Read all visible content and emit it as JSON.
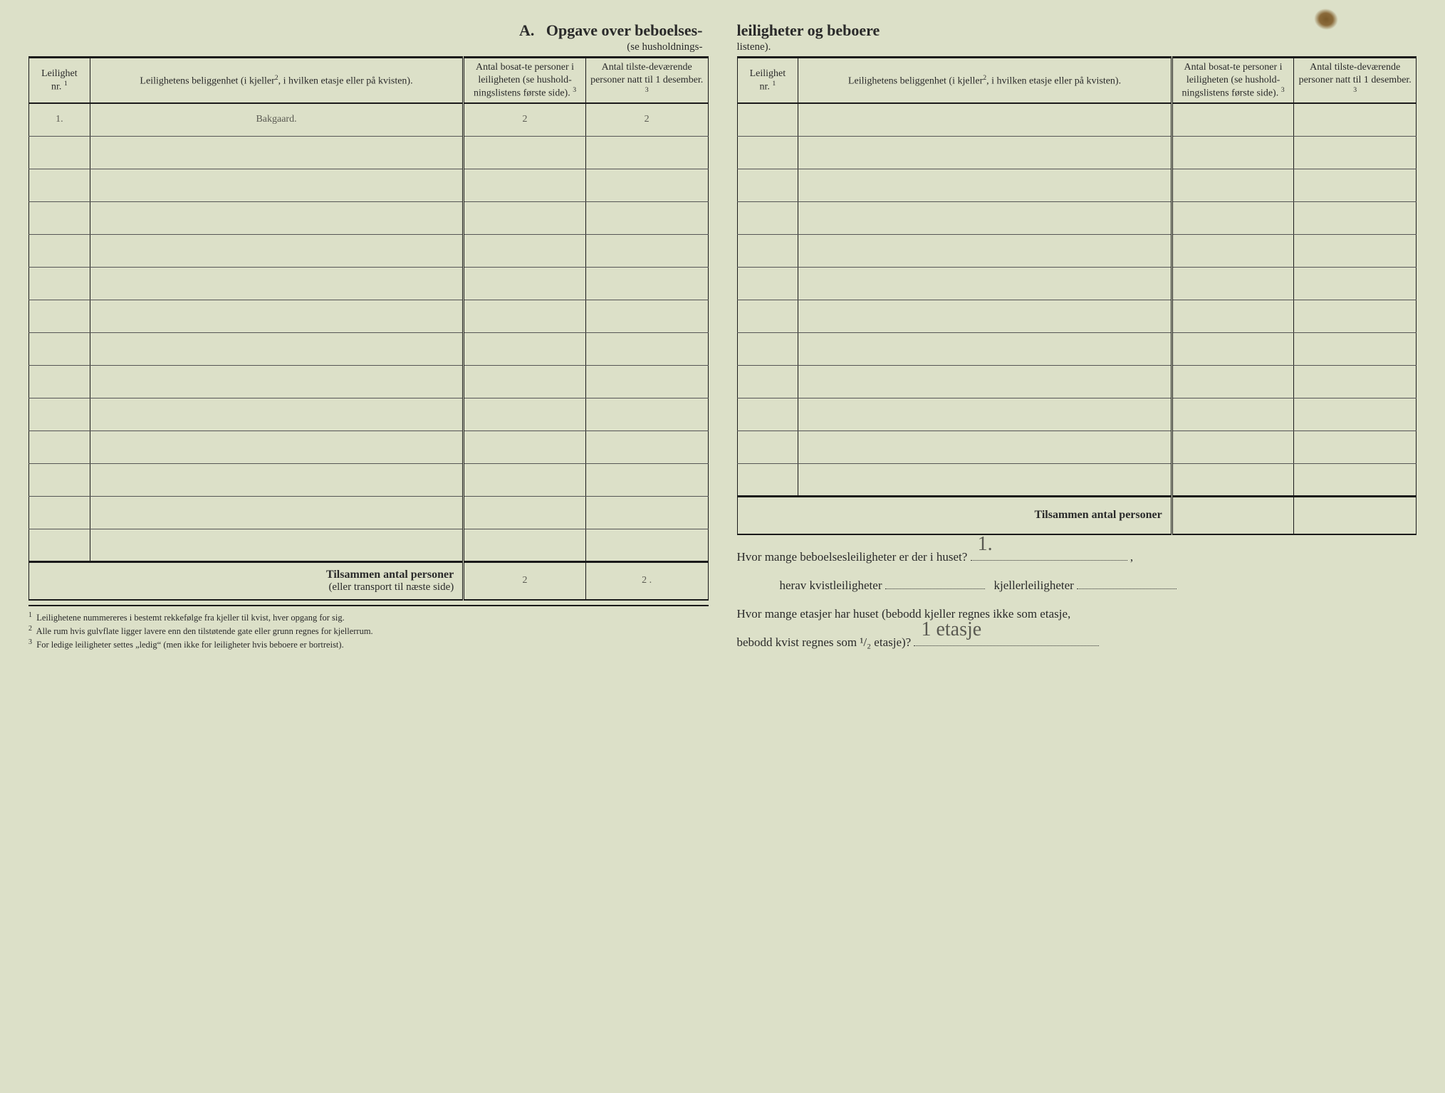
{
  "title": {
    "section_letter": "A.",
    "left": "Opgave over beboelses-",
    "right": "leiligheter og beboere",
    "sub_left": "(se husholdnings-",
    "sub_right": "listene)."
  },
  "headers": {
    "col1_line1": "Leilighet",
    "col1_line2": "nr.",
    "col1_sup": "1",
    "col2_pre": "Leilighetens beliggenhet (i kjeller",
    "col2_sup": "2",
    "col2_post": ", i hvilken etasje eller på kvisten).",
    "col3": "Antal bosat-te personer i leiligheten (se hushold-ningslistens første side).",
    "col3_sup": "3",
    "col4": "Antal tilste-deværende personer natt til 1 desember.",
    "col4_sup": "3"
  },
  "left_table": {
    "rows": [
      {
        "nr": "1.",
        "loc": "Bakgaard.",
        "c3": "2",
        "c4": "2"
      },
      {},
      {},
      {},
      {},
      {},
      {},
      {},
      {},
      {},
      {},
      {},
      {},
      {}
    ],
    "totals_label_bold": "Tilsammen antal personer",
    "totals_label_sub": "(eller transport til næste side)",
    "total_c3": "2",
    "total_c4": "2 ."
  },
  "right_table": {
    "rows": [
      {},
      {},
      {},
      {},
      {},
      {},
      {},
      {},
      {},
      {},
      {},
      {}
    ],
    "totals_label_bold": "Tilsammen antal personer",
    "total_c3": "",
    "total_c4": ""
  },
  "footnotes": {
    "f1": "Leilighetene nummereres i bestemt rekkefølge fra kjeller til kvist, hver opgang for sig.",
    "f2": "Alle rum hvis gulvflate ligger lavere enn den tilstøtende gate eller grunn regnes for kjellerrum.",
    "f3": "For ledige leiligheter settes „ledig“ (men ikke for leiligheter hvis beboere er bortreist)."
  },
  "questions": {
    "q1_pre": "Hvor mange beboelsesleiligheter er der i huset?",
    "q1_ans": "1.",
    "q1_trail": ",",
    "q2_a": "herav kvistleiligheter",
    "q2_b": "kjellerleiligheter",
    "q3": "Hvor mange etasjer har huset (bebodd kjeller regnes ikke som etasje,",
    "q4_pre": "bebodd kvist regnes som ¹/₂ etasje)?",
    "q4_ans": "1 etasje"
  }
}
